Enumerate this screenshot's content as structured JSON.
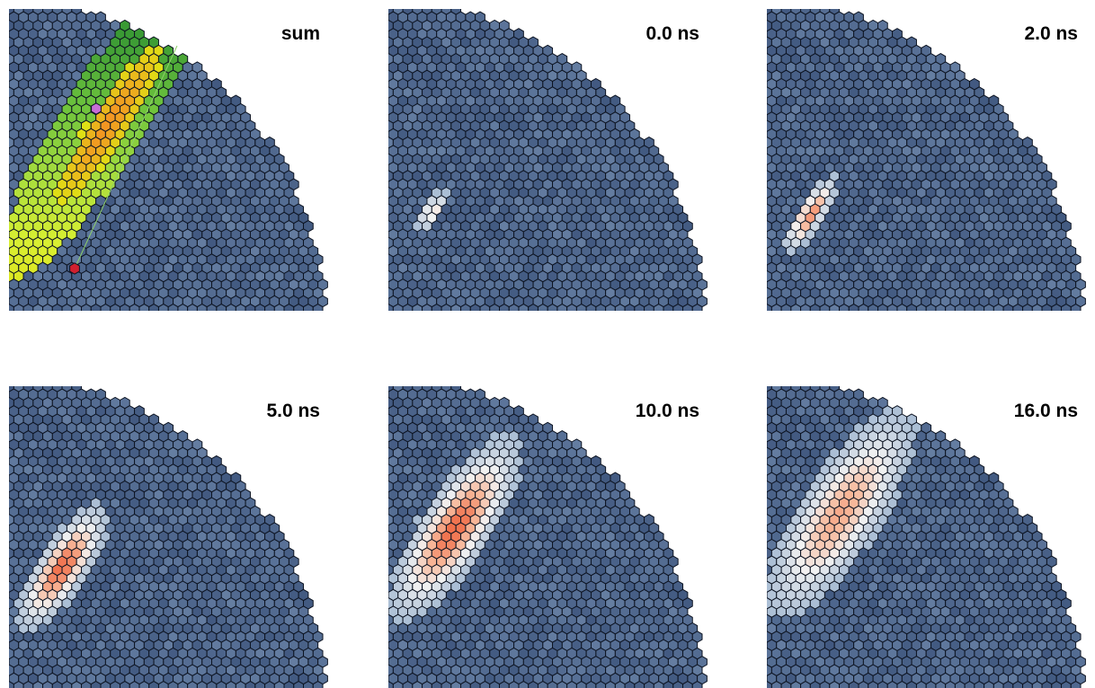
{
  "panels": [
    {
      "label": "sum",
      "mode": "sum"
    },
    {
      "label": "0.0 ns",
      "mode": "frame",
      "center": [
        0.13,
        0.33
      ],
      "spread": [
        0.015,
        0.04
      ],
      "peak": 0.55
    },
    {
      "label": "2.0 ns",
      "mode": "frame",
      "center": [
        0.13,
        0.32
      ],
      "spread": [
        0.02,
        0.07
      ],
      "peak": 0.85
    },
    {
      "label": "5.0 ns",
      "mode": "frame",
      "center": [
        0.16,
        0.4
      ],
      "spread": [
        0.035,
        0.11
      ],
      "peak": 1.0
    },
    {
      "label": "10.0 ns",
      "mode": "frame",
      "center": [
        0.2,
        0.53
      ],
      "spread": [
        0.05,
        0.16
      ],
      "peak": 1.0
    },
    {
      "label": "16.0 ns",
      "mode": "frame",
      "center": [
        0.22,
        0.58
      ],
      "spread": [
        0.06,
        0.19
      ],
      "peak": 0.75
    }
  ],
  "colors": {
    "background_hex": "#30466a",
    "hex_outline": "#0d1422",
    "frame_scale": [
      "#3b527a",
      "#5e779c",
      "#a9bdd4",
      "#f2f2f2",
      "#f8b89a",
      "#f06a45"
    ],
    "sum_scale": [
      "#e0e015",
      "#d9ef32",
      "#a5dc3e",
      "#6cc23c",
      "#3a9a34"
    ],
    "sum_core": "#f39522",
    "start_marker": "#d0202f",
    "side_marker": "#c86ed6"
  }
}
